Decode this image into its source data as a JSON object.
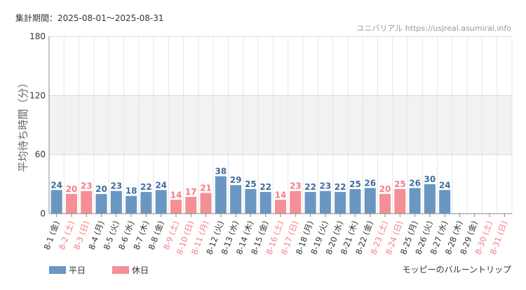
{
  "header": {
    "period": "集計期間：2025-08-01～2025-08-31",
    "site": "ユニバリアル https://usjreal.asumirai.info"
  },
  "footer": {
    "attraction": "モッピーのバルーントリップ"
  },
  "colors": {
    "weekday": "#6a96c3",
    "holiday": "#f48f96",
    "holiday_text": "#f47d87",
    "weekday_text": "#3f6d9e",
    "band": "#f2f2f2",
    "grid": "#e6e6e6"
  },
  "chart_data": {
    "type": "bar",
    "title": "",
    "xlabel": "",
    "ylabel": "平均待ち時間（分）",
    "ylim": [
      0,
      180
    ],
    "yticks": [
      0,
      60,
      120,
      180
    ],
    "grid": true,
    "legend_position": "bottom-left",
    "legend": [
      {
        "name": "平日",
        "type": "weekday"
      },
      {
        "name": "休日",
        "type": "holiday"
      }
    ],
    "categories": [
      "8-1 (金)",
      "8-2 (土)",
      "8-3 (日)",
      "8-4 (月)",
      "8-5 (火)",
      "8-6 (水)",
      "8-7 (木)",
      "8-8 (金)",
      "8-9 (土)",
      "8-10 (日)",
      "8-11 (月)",
      "8-12 (火)",
      "8-13 (水)",
      "8-14 (木)",
      "8-15 (金)",
      "8-16 (土)",
      "8-17 (日)",
      "8-18 (月)",
      "8-19 (火)",
      "8-20 (水)",
      "8-21 (木)",
      "8-22 (金)",
      "8-23 (土)",
      "8-24 (日)",
      "8-25 (月)",
      "8-26 (火)",
      "8-27 (水)",
      "8-28 (木)",
      "8-29 (金)",
      "8-30 (土)",
      "8-31 (日)"
    ],
    "day_types": [
      "weekday",
      "holiday",
      "holiday",
      "weekday",
      "weekday",
      "weekday",
      "weekday",
      "weekday",
      "holiday",
      "holiday",
      "holiday",
      "weekday",
      "weekday",
      "weekday",
      "weekday",
      "holiday",
      "holiday",
      "weekday",
      "weekday",
      "weekday",
      "weekday",
      "weekday",
      "holiday",
      "holiday",
      "weekday",
      "weekday",
      "weekday",
      "weekday",
      "weekday",
      "holiday",
      "holiday"
    ],
    "values": [
      24,
      20,
      23,
      20,
      23,
      18,
      22,
      24,
      14,
      17,
      21,
      38,
      29,
      25,
      22,
      14,
      23,
      22,
      23,
      22,
      25,
      26,
      20,
      25,
      26,
      30,
      24,
      null,
      null,
      null,
      null
    ]
  }
}
